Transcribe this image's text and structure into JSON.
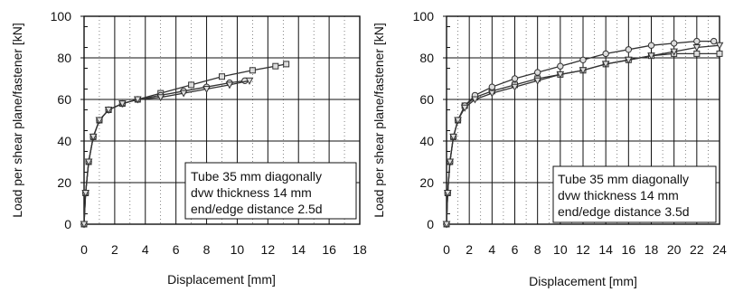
{
  "chart_data": [
    {
      "type": "line",
      "xlabel": "Displacement [mm]",
      "ylabel": "Load per shear plane/fastener  [kN]",
      "xlim": [
        0,
        18
      ],
      "ylim": [
        0,
        100
      ],
      "xticks": [
        "0",
        "2",
        "4",
        "6",
        "8",
        "10",
        "12",
        "14",
        "16",
        "18"
      ],
      "yticks": [
        "0",
        "20",
        "40",
        "60",
        "80",
        "100"
      ],
      "grid": true,
      "legend_position": "bottom-right",
      "annotation": [
        "Tube 35 mm diagonally",
        "dvw thickness 14 mm",
        "end/edge distance 2.5d"
      ],
      "series": [
        {
          "marker": "square",
          "x": [
            0,
            0.1,
            0.3,
            0.6,
            1.0,
            1.6,
            2.5,
            3.5,
            5,
            7,
            9,
            11,
            12.5,
            13.2
          ],
          "y": [
            0,
            15,
            30,
            42,
            50,
            55,
            58,
            60,
            63,
            67,
            71,
            74,
            76,
            77
          ]
        },
        {
          "marker": "circle",
          "x": [
            0,
            0.1,
            0.3,
            0.6,
            1.0,
            1.6,
            2.5,
            3.5,
            5,
            6.5,
            8,
            9.5,
            10.5
          ],
          "y": [
            0,
            15,
            30,
            42,
            50,
            55,
            58,
            60,
            62,
            64,
            66,
            68,
            69
          ]
        },
        {
          "marker": "triangle",
          "x": [
            0,
            0.1,
            0.3,
            0.6,
            1.0,
            1.6,
            2.5,
            3.5,
            5,
            6.5,
            8,
            9.5,
            10.8
          ],
          "y": [
            0,
            15,
            30,
            42,
            50,
            55,
            58,
            60,
            61,
            63,
            65,
            67,
            69
          ]
        }
      ]
    },
    {
      "type": "line",
      "xlabel": "Displacement [mm]",
      "ylabel": "Load per shear plane/fastener  [kN]",
      "xlim": [
        0,
        24
      ],
      "ylim": [
        0,
        100
      ],
      "xticks": [
        "0",
        "2",
        "4",
        "6",
        "8",
        "10",
        "12",
        "14",
        "16",
        "18",
        "20",
        "22",
        "24"
      ],
      "yticks": [
        "0",
        "20",
        "40",
        "60",
        "80",
        "100"
      ],
      "grid": true,
      "legend_position": "bottom-right",
      "annotation": [
        "Tube 35 mm  diagonally",
        "dvw thickness 14 mm",
        "end/edge distance 3.5d"
      ],
      "series": [
        {
          "marker": "square",
          "x": [
            0,
            0.1,
            0.3,
            0.6,
            1.0,
            1.6,
            2.5,
            4,
            6,
            8,
            10,
            12,
            14,
            16,
            18,
            20,
            22,
            24
          ],
          "y": [
            0,
            15,
            30,
            42,
            50,
            57,
            61,
            64,
            67,
            70,
            72,
            74,
            77,
            79,
            81,
            82,
            82,
            82
          ]
        },
        {
          "marker": "circle",
          "x": [
            0,
            0.1,
            0.3,
            0.6,
            1.0,
            1.6,
            2.5,
            4,
            6,
            8,
            10,
            12,
            14,
            16,
            18,
            20,
            22,
            23.5
          ],
          "y": [
            0,
            15,
            30,
            42,
            50,
            57,
            62,
            66,
            70,
            73,
            76,
            79,
            82,
            84,
            86,
            87,
            88,
            88
          ]
        },
        {
          "marker": "triangle",
          "x": [
            0,
            0.1,
            0.3,
            0.6,
            1.0,
            1.6,
            2.5,
            4,
            6,
            8,
            10,
            12,
            14,
            16,
            18,
            20,
            22,
            24
          ],
          "y": [
            0,
            15,
            30,
            42,
            50,
            56,
            60,
            63,
            66,
            69,
            72,
            74,
            77,
            79,
            81,
            83,
            85,
            86
          ]
        }
      ]
    }
  ]
}
